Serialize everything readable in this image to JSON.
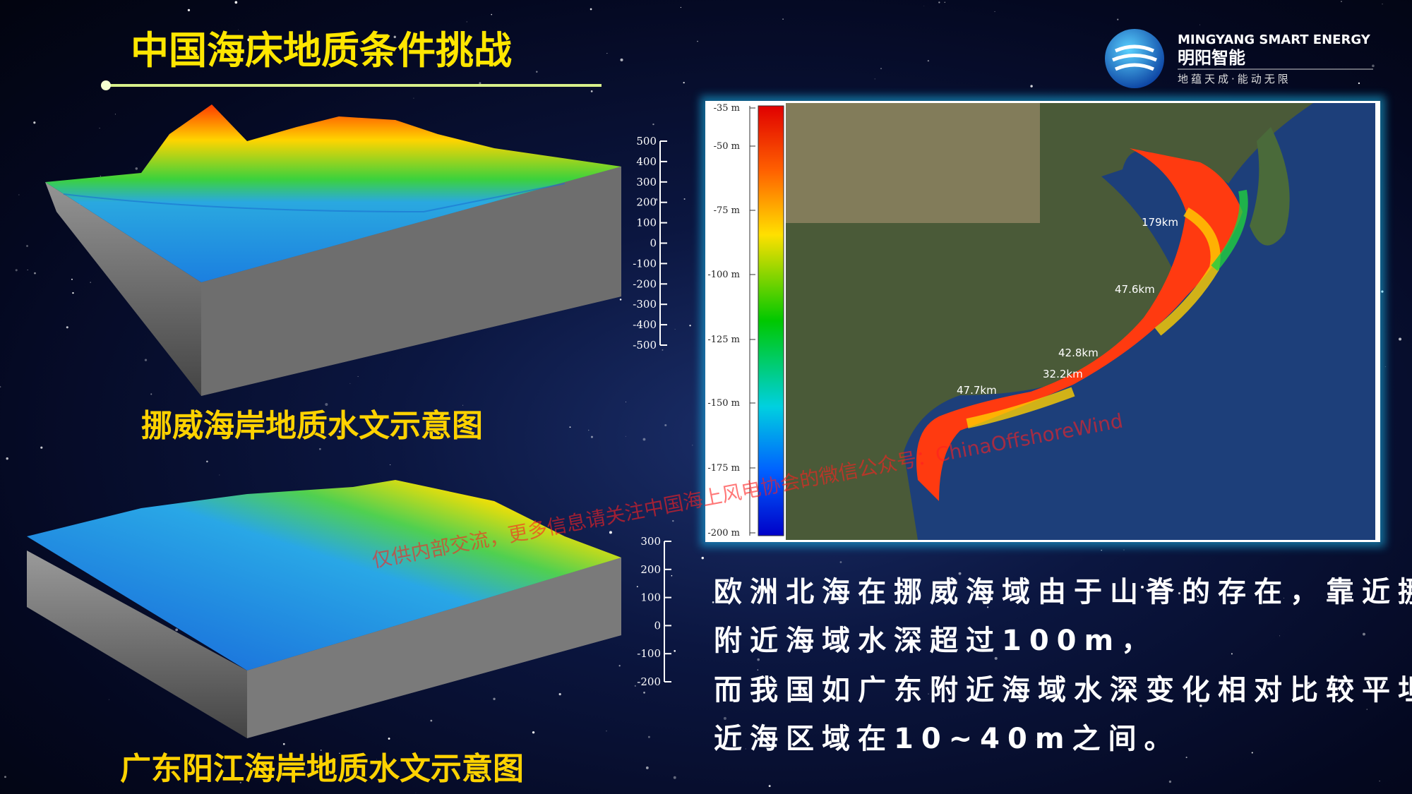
{
  "header": {
    "title": "中国海床地质条件挑战"
  },
  "logo": {
    "brand_en": "MINGYANG SMART ENERGY",
    "brand_cn": "明阳智能",
    "slogan": "地蕴天成·能动无限"
  },
  "norway": {
    "caption": "挪威海岸地质水文示意图",
    "scale": [
      "500",
      "400",
      "300",
      "200",
      "100",
      "0",
      "-100",
      "-200",
      "-300",
      "-400",
      "-500"
    ]
  },
  "guangdong": {
    "caption": "广东阳江海岸地质水文示意图",
    "scale": [
      "300",
      "200",
      "100",
      "0",
      "-100",
      "-200"
    ]
  },
  "map": {
    "colorbar": [
      "-35 m",
      "-50 m",
      "-75 m",
      "-100 m",
      "-125 m",
      "-150 m",
      "-175 m",
      "-200 m"
    ],
    "annotations": [
      "179km",
      "47.6km",
      "42.8km",
      "32.2km",
      "47.7km"
    ]
  },
  "watermark": "仅供内部交流，更多信息请关注中国海上风电协会的微信公众号：ChinaOffshoreWind",
  "body": {
    "lines": [
      "欧洲北海在挪威海域由于山脊的存在，靠近挪威",
      "附近海域水深超过100m，",
      "而我国如广东附近海域水深变化相对比较平坦，",
      "近海区域在10~40m之间。"
    ]
  }
}
